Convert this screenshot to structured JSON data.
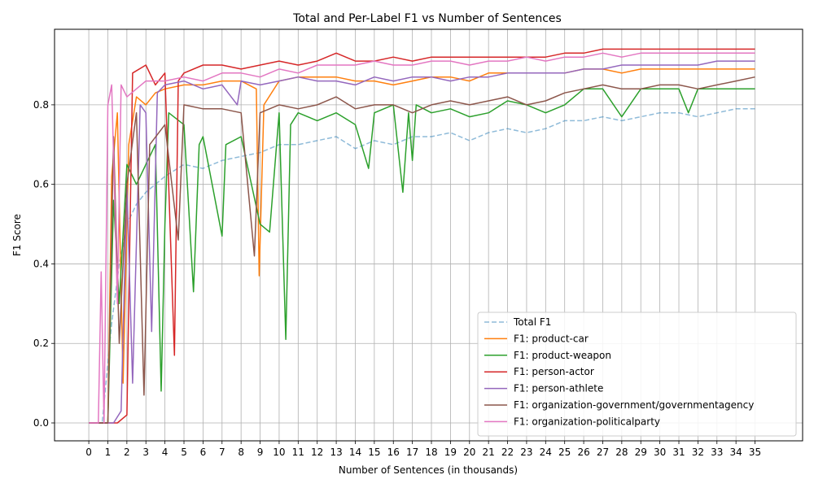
{
  "chart_data": {
    "type": "line",
    "title": "Total and Per-Label F1 vs Number of Sentences",
    "xlabel": "Number of Sentences (in thousands)",
    "ylabel": "F1 Score",
    "xlim": [
      -1.8,
      37.5
    ],
    "ylim": [
      -0.045,
      0.99
    ],
    "xticks": [
      0,
      1,
      2,
      3,
      4,
      5,
      6,
      7,
      8,
      9,
      10,
      11,
      12,
      13,
      14,
      15,
      16,
      17,
      18,
      19,
      20,
      21,
      22,
      23,
      24,
      25,
      26,
      27,
      28,
      29,
      30,
      31,
      32,
      33,
      34,
      35
    ],
    "yticks": [
      0.0,
      0.2,
      0.4,
      0.6,
      0.8
    ],
    "grid": true,
    "legend_position": "lower-right",
    "series": [
      {
        "name": "Total F1",
        "color": "#1f77b4",
        "dashed": true,
        "alpha": 0.5,
        "points": [
          [
            0,
            0
          ],
          [
            0.7,
            0
          ],
          [
            1.2,
            0.25
          ],
          [
            1.6,
            0.4
          ],
          [
            2.0,
            0.5
          ],
          [
            2.5,
            0.55
          ],
          [
            3,
            0.58
          ],
          [
            4,
            0.62
          ],
          [
            5,
            0.65
          ],
          [
            6,
            0.64
          ],
          [
            7,
            0.66
          ],
          [
            8,
            0.67
          ],
          [
            9,
            0.68
          ],
          [
            10,
            0.7
          ],
          [
            11,
            0.7
          ],
          [
            12,
            0.71
          ],
          [
            13,
            0.72
          ],
          [
            14,
            0.69
          ],
          [
            15,
            0.71
          ],
          [
            16,
            0.7
          ],
          [
            17,
            0.72
          ],
          [
            18,
            0.72
          ],
          [
            19,
            0.73
          ],
          [
            20,
            0.71
          ],
          [
            21,
            0.73
          ],
          [
            22,
            0.74
          ],
          [
            23,
            0.73
          ],
          [
            24,
            0.74
          ],
          [
            25,
            0.76
          ],
          [
            26,
            0.76
          ],
          [
            27,
            0.77
          ],
          [
            28,
            0.76
          ],
          [
            29,
            0.77
          ],
          [
            30,
            0.78
          ],
          [
            31,
            0.78
          ],
          [
            32,
            0.77
          ],
          [
            33,
            0.78
          ],
          [
            34,
            0.79
          ],
          [
            35,
            0.79
          ]
        ]
      },
      {
        "name": "F1: product-car",
        "color": "#ff7f0e",
        "dashed": false,
        "alpha": 1,
        "points": [
          [
            0,
            0
          ],
          [
            1.0,
            0
          ],
          [
            1.2,
            0.62
          ],
          [
            1.5,
            0.78
          ],
          [
            1.8,
            0.1
          ],
          [
            2.1,
            0.7
          ],
          [
            2.5,
            0.82
          ],
          [
            3,
            0.8
          ],
          [
            3.5,
            0.83
          ],
          [
            4,
            0.84
          ],
          [
            5,
            0.85
          ],
          [
            6,
            0.85
          ],
          [
            7,
            0.86
          ],
          [
            8,
            0.86
          ],
          [
            8.8,
            0.84
          ],
          [
            8.95,
            0.37
          ],
          [
            9.2,
            0.8
          ],
          [
            10,
            0.86
          ],
          [
            11,
            0.87
          ],
          [
            12,
            0.87
          ],
          [
            13,
            0.87
          ],
          [
            14,
            0.86
          ],
          [
            15,
            0.86
          ],
          [
            16,
            0.85
          ],
          [
            17,
            0.86
          ],
          [
            18,
            0.87
          ],
          [
            19,
            0.87
          ],
          [
            20,
            0.86
          ],
          [
            21,
            0.88
          ],
          [
            22,
            0.88
          ],
          [
            23,
            0.88
          ],
          [
            24,
            0.88
          ],
          [
            25,
            0.88
          ],
          [
            26,
            0.89
          ],
          [
            27,
            0.89
          ],
          [
            28,
            0.88
          ],
          [
            29,
            0.89
          ],
          [
            30,
            0.89
          ],
          [
            31,
            0.89
          ],
          [
            32,
            0.89
          ],
          [
            33,
            0.89
          ],
          [
            34,
            0.89
          ],
          [
            35,
            0.89
          ]
        ]
      },
      {
        "name": "F1: product-weapon",
        "color": "#2ca02c",
        "dashed": false,
        "alpha": 1,
        "points": [
          [
            0,
            0
          ],
          [
            1.0,
            0
          ],
          [
            1.3,
            0.56
          ],
          [
            1.6,
            0.3
          ],
          [
            2.0,
            0.65
          ],
          [
            2.5,
            0.6
          ],
          [
            3,
            0.65
          ],
          [
            3.5,
            0.7
          ],
          [
            3.8,
            0.08
          ],
          [
            4.0,
            0.5
          ],
          [
            4.2,
            0.78
          ],
          [
            5,
            0.75
          ],
          [
            5.5,
            0.33
          ],
          [
            5.8,
            0.7
          ],
          [
            6,
            0.72
          ],
          [
            7,
            0.47
          ],
          [
            7.2,
            0.7
          ],
          [
            8,
            0.72
          ],
          [
            9,
            0.5
          ],
          [
            9.5,
            0.48
          ],
          [
            10,
            0.78
          ],
          [
            10.35,
            0.21
          ],
          [
            10.6,
            0.75
          ],
          [
            11,
            0.78
          ],
          [
            12,
            0.76
          ],
          [
            13,
            0.78
          ],
          [
            14,
            0.75
          ],
          [
            14.7,
            0.64
          ],
          [
            15,
            0.78
          ],
          [
            16,
            0.8
          ],
          [
            16.5,
            0.58
          ],
          [
            16.8,
            0.78
          ],
          [
            17,
            0.66
          ],
          [
            17.2,
            0.8
          ],
          [
            18,
            0.78
          ],
          [
            19,
            0.79
          ],
          [
            20,
            0.77
          ],
          [
            21,
            0.78
          ],
          [
            22,
            0.81
          ],
          [
            23,
            0.8
          ],
          [
            24,
            0.78
          ],
          [
            25,
            0.8
          ],
          [
            26,
            0.84
          ],
          [
            27,
            0.84
          ],
          [
            28,
            0.77
          ],
          [
            29,
            0.84
          ],
          [
            30,
            0.84
          ],
          [
            31,
            0.84
          ],
          [
            31.5,
            0.78
          ],
          [
            32,
            0.84
          ],
          [
            33,
            0.84
          ],
          [
            34,
            0.84
          ],
          [
            35,
            0.84
          ]
        ]
      },
      {
        "name": "F1: person-actor",
        "color": "#d62728",
        "dashed": false,
        "alpha": 1,
        "points": [
          [
            0,
            0
          ],
          [
            1.5,
            0
          ],
          [
            2.0,
            0.02
          ],
          [
            2.3,
            0.88
          ],
          [
            3,
            0.9
          ],
          [
            3.5,
            0.85
          ],
          [
            4,
            0.88
          ],
          [
            4.5,
            0.17
          ],
          [
            4.7,
            0.86
          ],
          [
            5,
            0.88
          ],
          [
            6,
            0.9
          ],
          [
            7,
            0.9
          ],
          [
            8,
            0.89
          ],
          [
            9,
            0.9
          ],
          [
            10,
            0.91
          ],
          [
            11,
            0.9
          ],
          [
            12,
            0.91
          ],
          [
            13,
            0.93
          ],
          [
            14,
            0.91
          ],
          [
            15,
            0.91
          ],
          [
            16,
            0.92
          ],
          [
            17,
            0.91
          ],
          [
            18,
            0.92
          ],
          [
            19,
            0.92
          ],
          [
            20,
            0.92
          ],
          [
            21,
            0.92
          ],
          [
            22,
            0.92
          ],
          [
            23,
            0.92
          ],
          [
            24,
            0.92
          ],
          [
            25,
            0.93
          ],
          [
            26,
            0.93
          ],
          [
            27,
            0.94
          ],
          [
            28,
            0.94
          ],
          [
            29,
            0.94
          ],
          [
            30,
            0.94
          ],
          [
            31,
            0.94
          ],
          [
            32,
            0.94
          ],
          [
            33,
            0.94
          ],
          [
            34,
            0.94
          ],
          [
            35,
            0.94
          ]
        ]
      },
      {
        "name": "F1: person-athlete",
        "color": "#9467bd",
        "dashed": false,
        "alpha": 1,
        "points": [
          [
            0,
            0
          ],
          [
            1.3,
            0
          ],
          [
            1.7,
            0.03
          ],
          [
            2.0,
            0.6
          ],
          [
            2.3,
            0.1
          ],
          [
            2.7,
            0.8
          ],
          [
            3,
            0.78
          ],
          [
            3.3,
            0.23
          ],
          [
            3.6,
            0.83
          ],
          [
            4,
            0.85
          ],
          [
            5,
            0.86
          ],
          [
            6,
            0.84
          ],
          [
            7,
            0.85
          ],
          [
            7.8,
            0.8
          ],
          [
            8,
            0.86
          ],
          [
            9,
            0.85
          ],
          [
            10,
            0.86
          ],
          [
            11,
            0.87
          ],
          [
            12,
            0.86
          ],
          [
            13,
            0.86
          ],
          [
            14,
            0.85
          ],
          [
            15,
            0.87
          ],
          [
            16,
            0.86
          ],
          [
            17,
            0.87
          ],
          [
            18,
            0.87
          ],
          [
            19,
            0.86
          ],
          [
            20,
            0.87
          ],
          [
            21,
            0.87
          ],
          [
            22,
            0.88
          ],
          [
            23,
            0.88
          ],
          [
            24,
            0.88
          ],
          [
            25,
            0.88
          ],
          [
            26,
            0.89
          ],
          [
            27,
            0.89
          ],
          [
            28,
            0.9
          ],
          [
            29,
            0.9
          ],
          [
            30,
            0.9
          ],
          [
            31,
            0.9
          ],
          [
            32,
            0.9
          ],
          [
            33,
            0.91
          ],
          [
            34,
            0.91
          ],
          [
            35,
            0.91
          ]
        ]
      },
      {
        "name": "F1: organization-government/governmentagency",
        "color": "#8c564b",
        "dashed": false,
        "alpha": 1,
        "points": [
          [
            0,
            0
          ],
          [
            1.0,
            0
          ],
          [
            1.3,
            0.72
          ],
          [
            1.6,
            0.2
          ],
          [
            2.0,
            0.6
          ],
          [
            2.5,
            0.78
          ],
          [
            2.9,
            0.07
          ],
          [
            3.2,
            0.7
          ],
          [
            4,
            0.75
          ],
          [
            4.7,
            0.46
          ],
          [
            5,
            0.8
          ],
          [
            6,
            0.79
          ],
          [
            7,
            0.79
          ],
          [
            8,
            0.78
          ],
          [
            8.7,
            0.42
          ],
          [
            9,
            0.78
          ],
          [
            10,
            0.8
          ],
          [
            11,
            0.79
          ],
          [
            12,
            0.8
          ],
          [
            13,
            0.82
          ],
          [
            14,
            0.79
          ],
          [
            15,
            0.8
          ],
          [
            16,
            0.8
          ],
          [
            17,
            0.78
          ],
          [
            18,
            0.8
          ],
          [
            19,
            0.81
          ],
          [
            20,
            0.8
          ],
          [
            21,
            0.81
          ],
          [
            22,
            0.82
          ],
          [
            23,
            0.8
          ],
          [
            24,
            0.81
          ],
          [
            25,
            0.83
          ],
          [
            26,
            0.84
          ],
          [
            27,
            0.85
          ],
          [
            28,
            0.84
          ],
          [
            29,
            0.84
          ],
          [
            30,
            0.85
          ],
          [
            31,
            0.85
          ],
          [
            32,
            0.84
          ],
          [
            33,
            0.85
          ],
          [
            34,
            0.86
          ],
          [
            35,
            0.87
          ]
        ]
      },
      {
        "name": "F1: organization-politicalparty",
        "color": "#e377c2",
        "dashed": false,
        "alpha": 1,
        "points": [
          [
            0,
            0
          ],
          [
            0.5,
            0
          ],
          [
            0.65,
            0.38
          ],
          [
            0.8,
            0
          ],
          [
            1.0,
            0.8
          ],
          [
            1.2,
            0.85
          ],
          [
            1.5,
            0.3
          ],
          [
            1.7,
            0.85
          ],
          [
            2,
            0.82
          ],
          [
            3,
            0.86
          ],
          [
            4,
            0.86
          ],
          [
            5,
            0.87
          ],
          [
            6,
            0.86
          ],
          [
            7,
            0.88
          ],
          [
            8,
            0.88
          ],
          [
            9,
            0.87
          ],
          [
            10,
            0.89
          ],
          [
            11,
            0.88
          ],
          [
            12,
            0.9
          ],
          [
            13,
            0.9
          ],
          [
            14,
            0.9
          ],
          [
            15,
            0.91
          ],
          [
            16,
            0.9
          ],
          [
            17,
            0.9
          ],
          [
            18,
            0.91
          ],
          [
            19,
            0.91
          ],
          [
            20,
            0.9
          ],
          [
            21,
            0.91
          ],
          [
            22,
            0.91
          ],
          [
            23,
            0.92
          ],
          [
            24,
            0.91
          ],
          [
            25,
            0.92
          ],
          [
            26,
            0.92
          ],
          [
            27,
            0.93
          ],
          [
            28,
            0.92
          ],
          [
            29,
            0.93
          ],
          [
            30,
            0.93
          ],
          [
            31,
            0.93
          ],
          [
            32,
            0.93
          ],
          [
            33,
            0.93
          ],
          [
            34,
            0.93
          ],
          [
            35,
            0.93
          ]
        ]
      }
    ]
  }
}
